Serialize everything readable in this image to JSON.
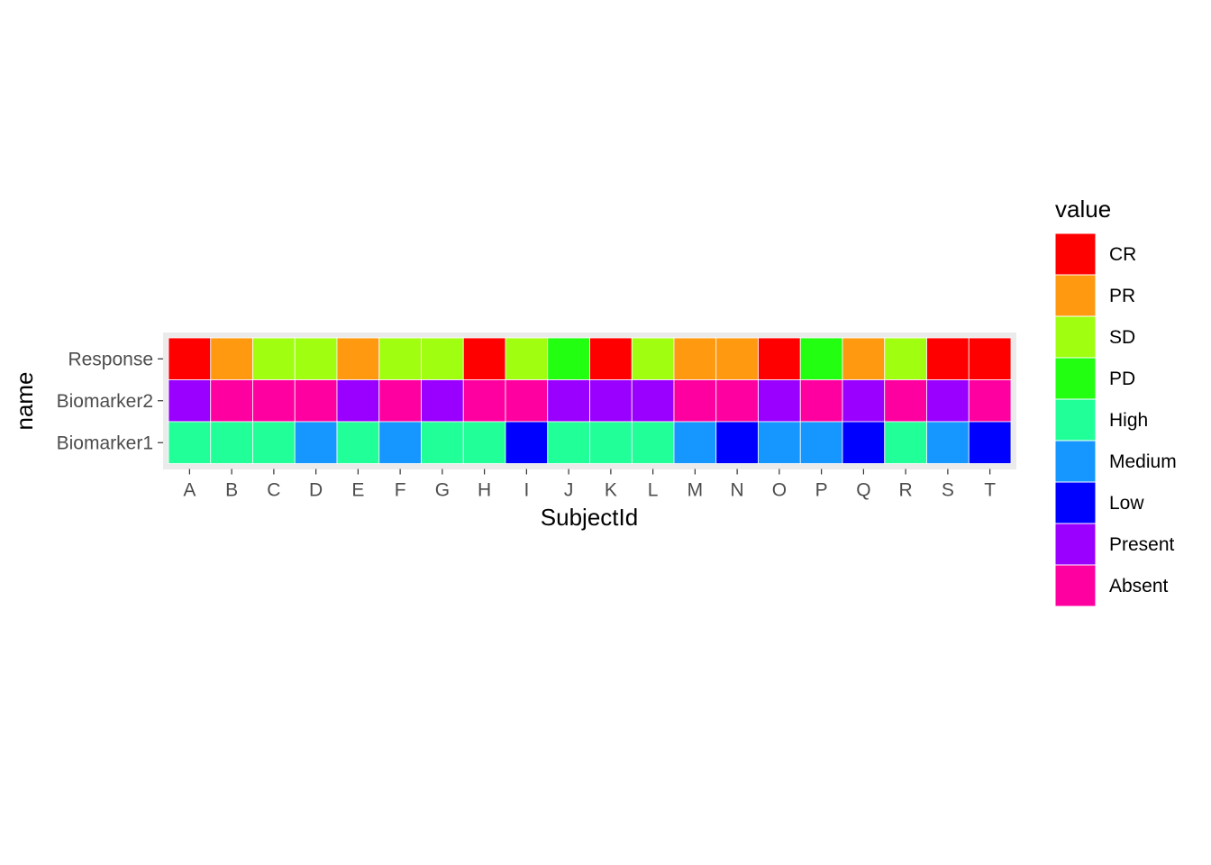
{
  "chart_data": {
    "type": "heatmap",
    "xlabel": "SubjectId",
    "ylabel": "name",
    "x_categories": [
      "A",
      "B",
      "C",
      "D",
      "E",
      "F",
      "G",
      "H",
      "I",
      "J",
      "K",
      "L",
      "M",
      "N",
      "O",
      "P",
      "Q",
      "R",
      "S",
      "T"
    ],
    "y_categories": [
      "Response",
      "Biomarker2",
      "Biomarker1"
    ],
    "cells": {
      "Response": [
        "CR",
        "PR",
        "SD",
        "SD",
        "PR",
        "SD",
        "SD",
        "CR",
        "SD",
        "PD",
        "CR",
        "SD",
        "PR",
        "PR",
        "CR",
        "PD",
        "PR",
        "SD",
        "CR",
        "CR"
      ],
      "Biomarker2": [
        "Present",
        "Absent",
        "Absent",
        "Absent",
        "Present",
        "Absent",
        "Present",
        "Absent",
        "Absent",
        "Present",
        "Present",
        "Present",
        "Absent",
        "Absent",
        "Present",
        "Absent",
        "Present",
        "Absent",
        "Present",
        "Absent"
      ],
      "Biomarker1": [
        "High",
        "High",
        "High",
        "Medium",
        "High",
        "Medium",
        "High",
        "High",
        "Low",
        "High",
        "High",
        "High",
        "Medium",
        "Low",
        "Medium",
        "Medium",
        "Low",
        "High",
        "Medium",
        "Low"
      ]
    },
    "legend": {
      "title": "value",
      "position": "right",
      "entries": [
        {
          "label": "CR",
          "color": "#FF0000"
        },
        {
          "label": "PR",
          "color": "#FF9910"
        },
        {
          "label": "SD",
          "color": "#A0FF10"
        },
        {
          "label": "PD",
          "color": "#22FF10"
        },
        {
          "label": "High",
          "color": "#20FF98"
        },
        {
          "label": "Medium",
          "color": "#1696FF"
        },
        {
          "label": "Low",
          "color": "#0000FF"
        },
        {
          "label": "Present",
          "color": "#9900FF"
        },
        {
          "label": "Absent",
          "color": "#FF00A0"
        }
      ]
    },
    "panel_background": "#EBEBEB",
    "grid": true
  }
}
